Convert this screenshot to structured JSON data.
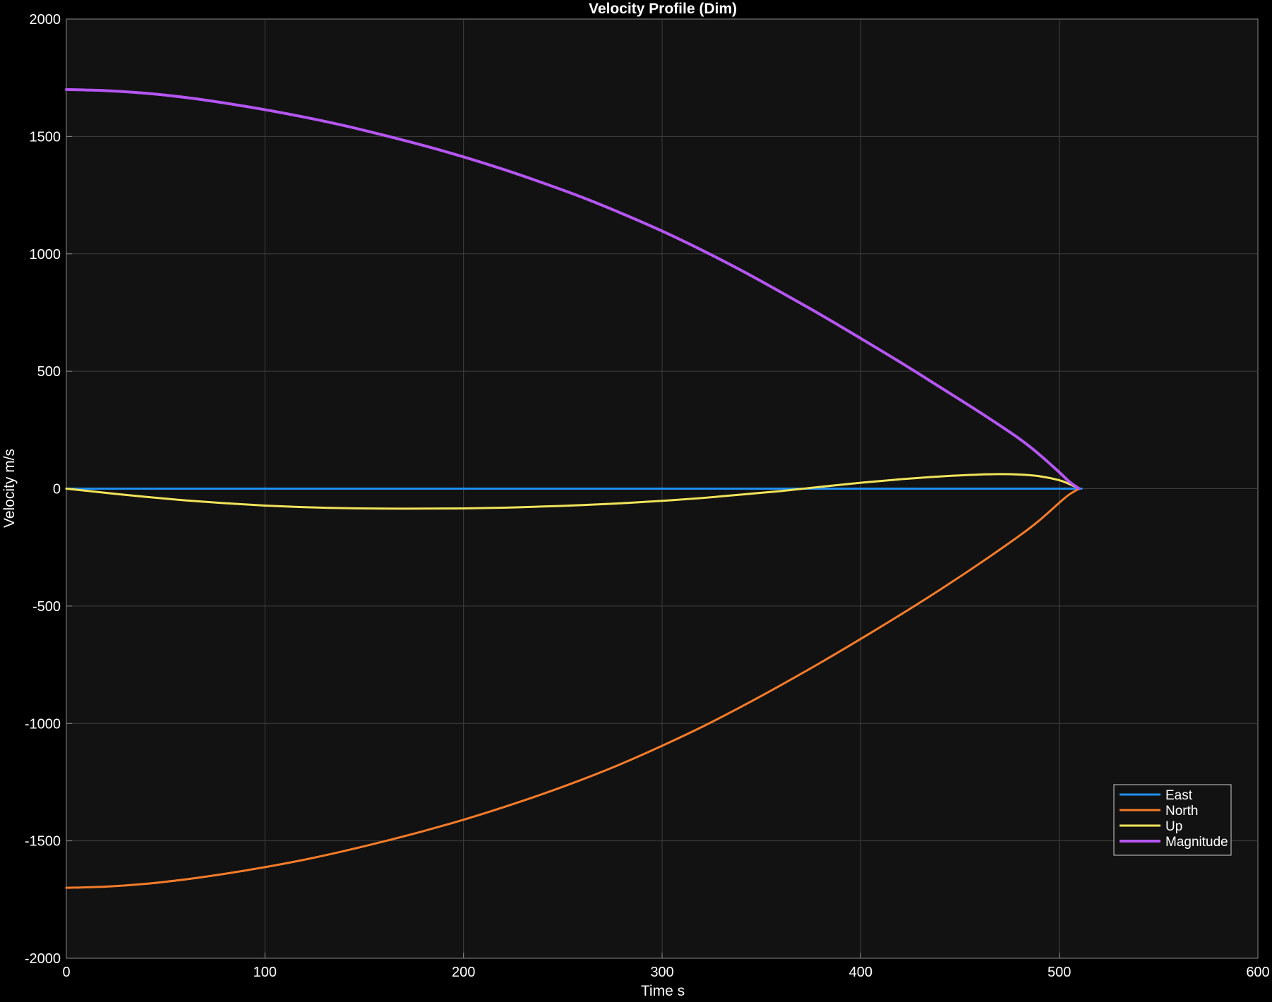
{
  "chart_data": {
    "type": "line",
    "title": "Velocity Profile (Dim)",
    "xlabel": "Time s",
    "ylabel": "Velocity m/s",
    "xlim": [
      0,
      600
    ],
    "ylim": [
      -2000,
      2000
    ],
    "xticks": [
      0,
      100,
      200,
      300,
      400,
      500,
      600
    ],
    "yticks": [
      -2000,
      -1500,
      -1000,
      -500,
      0,
      500,
      1000,
      1500,
      2000
    ],
    "xtick_labels": [
      "0",
      "100",
      "200",
      "300",
      "400",
      "500",
      "600"
    ],
    "ytick_labels": [
      "-2000",
      "-1500",
      "-1000",
      "-500",
      "0",
      "500",
      "1000",
      "1500",
      "2000"
    ],
    "grid": true,
    "legend_position": "bottom-right",
    "background_color": "#121212",
    "series": [
      {
        "name": "East",
        "color": "#1f8ef1",
        "x": [
          0,
          100,
          200,
          300,
          400,
          500,
          510
        ],
        "y": [
          0,
          0,
          0,
          0,
          0,
          0,
          0
        ]
      },
      {
        "name": "North",
        "color": "#f57c2a",
        "x": [
          0,
          20,
          40,
          60,
          80,
          100,
          120,
          140,
          160,
          180,
          200,
          220,
          240,
          260,
          280,
          300,
          320,
          340,
          360,
          380,
          400,
          420,
          440,
          460,
          480,
          490,
          500,
          505,
          510
        ],
        "y": [
          -1700,
          -1695,
          -1683,
          -1664,
          -1640,
          -1612,
          -1580,
          -1543,
          -1502,
          -1458,
          -1410,
          -1357,
          -1300,
          -1238,
          -1170,
          -1095,
          -1015,
          -928,
          -836,
          -740,
          -640,
          -537,
          -430,
          -318,
          -200,
          -135,
          -60,
          -25,
          0
        ]
      },
      {
        "name": "Up",
        "color": "#f2e45a",
        "x": [
          0,
          20,
          40,
          60,
          80,
          100,
          120,
          140,
          160,
          180,
          200,
          220,
          240,
          260,
          280,
          300,
          320,
          340,
          360,
          380,
          400,
          420,
          440,
          460,
          470,
          480,
          490,
          500,
          505,
          510
        ],
        "y": [
          0,
          -18,
          -35,
          -50,
          -62,
          -72,
          -79,
          -83,
          -85,
          -85,
          -84,
          -81,
          -76,
          -70,
          -62,
          -52,
          -40,
          -25,
          -10,
          8,
          25,
          40,
          52,
          60,
          62,
          60,
          53,
          36,
          20,
          0
        ]
      },
      {
        "name": "Magnitude",
        "color": "#b556f2",
        "x": [
          0,
          20,
          40,
          60,
          80,
          100,
          120,
          140,
          160,
          180,
          200,
          220,
          240,
          260,
          280,
          300,
          320,
          340,
          360,
          380,
          400,
          420,
          440,
          460,
          480,
          490,
          500,
          505,
          510
        ],
        "y": [
          1700,
          1695,
          1684,
          1666,
          1642,
          1614,
          1582,
          1546,
          1505,
          1461,
          1413,
          1360,
          1302,
          1240,
          1171,
          1097,
          1016,
          929,
          836,
          740,
          640,
          538,
          432,
          325,
          212,
          145,
          70,
          30,
          0
        ]
      }
    ]
  }
}
